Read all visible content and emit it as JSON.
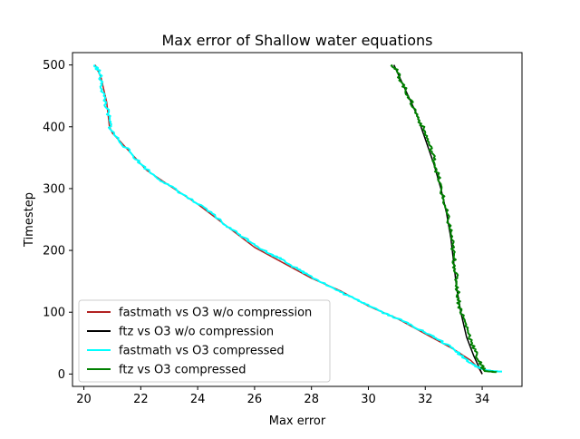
{
  "chart_data": {
    "type": "line",
    "title": "Max error of Shallow water equations",
    "xlabel": "Max error",
    "ylabel": "Timestep",
    "xlim": [
      19.6,
      35.4
    ],
    "ylim": [
      -20,
      520
    ],
    "xticks": [
      20,
      22,
      24,
      26,
      28,
      30,
      32,
      34
    ],
    "yticks": [
      0,
      100,
      200,
      300,
      400,
      500
    ],
    "grid": false,
    "legend_position": "lower-left",
    "series": [
      {
        "name": "fastmath vs O3 w/o compression",
        "color": "#b22222",
        "points": [
          [
            20.4,
            500
          ],
          [
            20.6,
            480
          ],
          [
            20.8,
            440
          ],
          [
            20.9,
            400
          ],
          [
            21.0,
            390
          ],
          [
            21.3,
            375
          ],
          [
            21.7,
            355
          ],
          [
            22.2,
            330
          ],
          [
            23.0,
            305
          ],
          [
            24.0,
            275
          ],
          [
            25.0,
            240
          ],
          [
            26.0,
            205
          ],
          [
            27.0,
            180
          ],
          [
            28.0,
            155
          ],
          [
            29.0,
            135
          ],
          [
            30.0,
            110
          ],
          [
            31.0,
            90
          ],
          [
            32.0,
            65
          ],
          [
            33.0,
            40
          ],
          [
            33.6,
            22
          ],
          [
            33.9,
            8
          ],
          [
            34.0,
            0
          ]
        ]
      },
      {
        "name": "ftz vs O3 w/o compression",
        "color": "#000000",
        "points": [
          [
            30.9,
            500
          ],
          [
            31.1,
            480
          ],
          [
            31.4,
            450
          ],
          [
            31.7,
            420
          ],
          [
            32.0,
            380
          ],
          [
            32.3,
            340
          ],
          [
            32.55,
            300
          ],
          [
            32.75,
            260
          ],
          [
            32.9,
            220
          ],
          [
            33.0,
            180
          ],
          [
            33.1,
            140
          ],
          [
            33.25,
            100
          ],
          [
            33.45,
            60
          ],
          [
            33.7,
            30
          ],
          [
            33.9,
            10
          ],
          [
            34.0,
            0
          ]
        ]
      },
      {
        "name": "fastmath vs O3 compressed",
        "color": "#00ffff",
        "points": [
          [
            20.35,
            500
          ],
          [
            20.55,
            490
          ],
          [
            20.6,
            470
          ],
          [
            20.7,
            450
          ],
          [
            20.8,
            430
          ],
          [
            20.9,
            410
          ],
          [
            20.95,
            395
          ],
          [
            21.2,
            380
          ],
          [
            21.6,
            360
          ],
          [
            22.0,
            340
          ],
          [
            22.5,
            320
          ],
          [
            23.0,
            305
          ],
          [
            23.5,
            290
          ],
          [
            24.0,
            275
          ],
          [
            24.5,
            260
          ],
          [
            25.0,
            240
          ],
          [
            25.5,
            225
          ],
          [
            26.0,
            210
          ],
          [
            26.5,
            195
          ],
          [
            27.0,
            185
          ],
          [
            27.5,
            170
          ],
          [
            28.0,
            158
          ],
          [
            28.5,
            145
          ],
          [
            29.0,
            133
          ],
          [
            29.5,
            122
          ],
          [
            30.0,
            112
          ],
          [
            30.5,
            100
          ],
          [
            31.0,
            90
          ],
          [
            31.5,
            80
          ],
          [
            32.0,
            67
          ],
          [
            32.5,
            55
          ],
          [
            33.0,
            40
          ],
          [
            33.4,
            25
          ],
          [
            33.7,
            15
          ],
          [
            34.0,
            8
          ],
          [
            34.3,
            5
          ],
          [
            34.7,
            4
          ]
        ]
      },
      {
        "name": "ftz vs O3 compressed",
        "color": "#008000",
        "points": [
          [
            30.85,
            500
          ],
          [
            31.0,
            490
          ],
          [
            31.2,
            470
          ],
          [
            31.4,
            450
          ],
          [
            31.6,
            430
          ],
          [
            31.8,
            410
          ],
          [
            32.0,
            390
          ],
          [
            32.15,
            370
          ],
          [
            32.3,
            350
          ],
          [
            32.4,
            330
          ],
          [
            32.5,
            310
          ],
          [
            32.6,
            290
          ],
          [
            32.7,
            270
          ],
          [
            32.8,
            250
          ],
          [
            32.9,
            230
          ],
          [
            32.95,
            210
          ],
          [
            33.0,
            190
          ],
          [
            33.05,
            170
          ],
          [
            33.1,
            150
          ],
          [
            33.15,
            130
          ],
          [
            33.2,
            110
          ],
          [
            33.35,
            90
          ],
          [
            33.5,
            70
          ],
          [
            33.65,
            50
          ],
          [
            33.8,
            30
          ],
          [
            33.95,
            15
          ],
          [
            34.1,
            5
          ],
          [
            34.5,
            3
          ]
        ]
      }
    ]
  }
}
